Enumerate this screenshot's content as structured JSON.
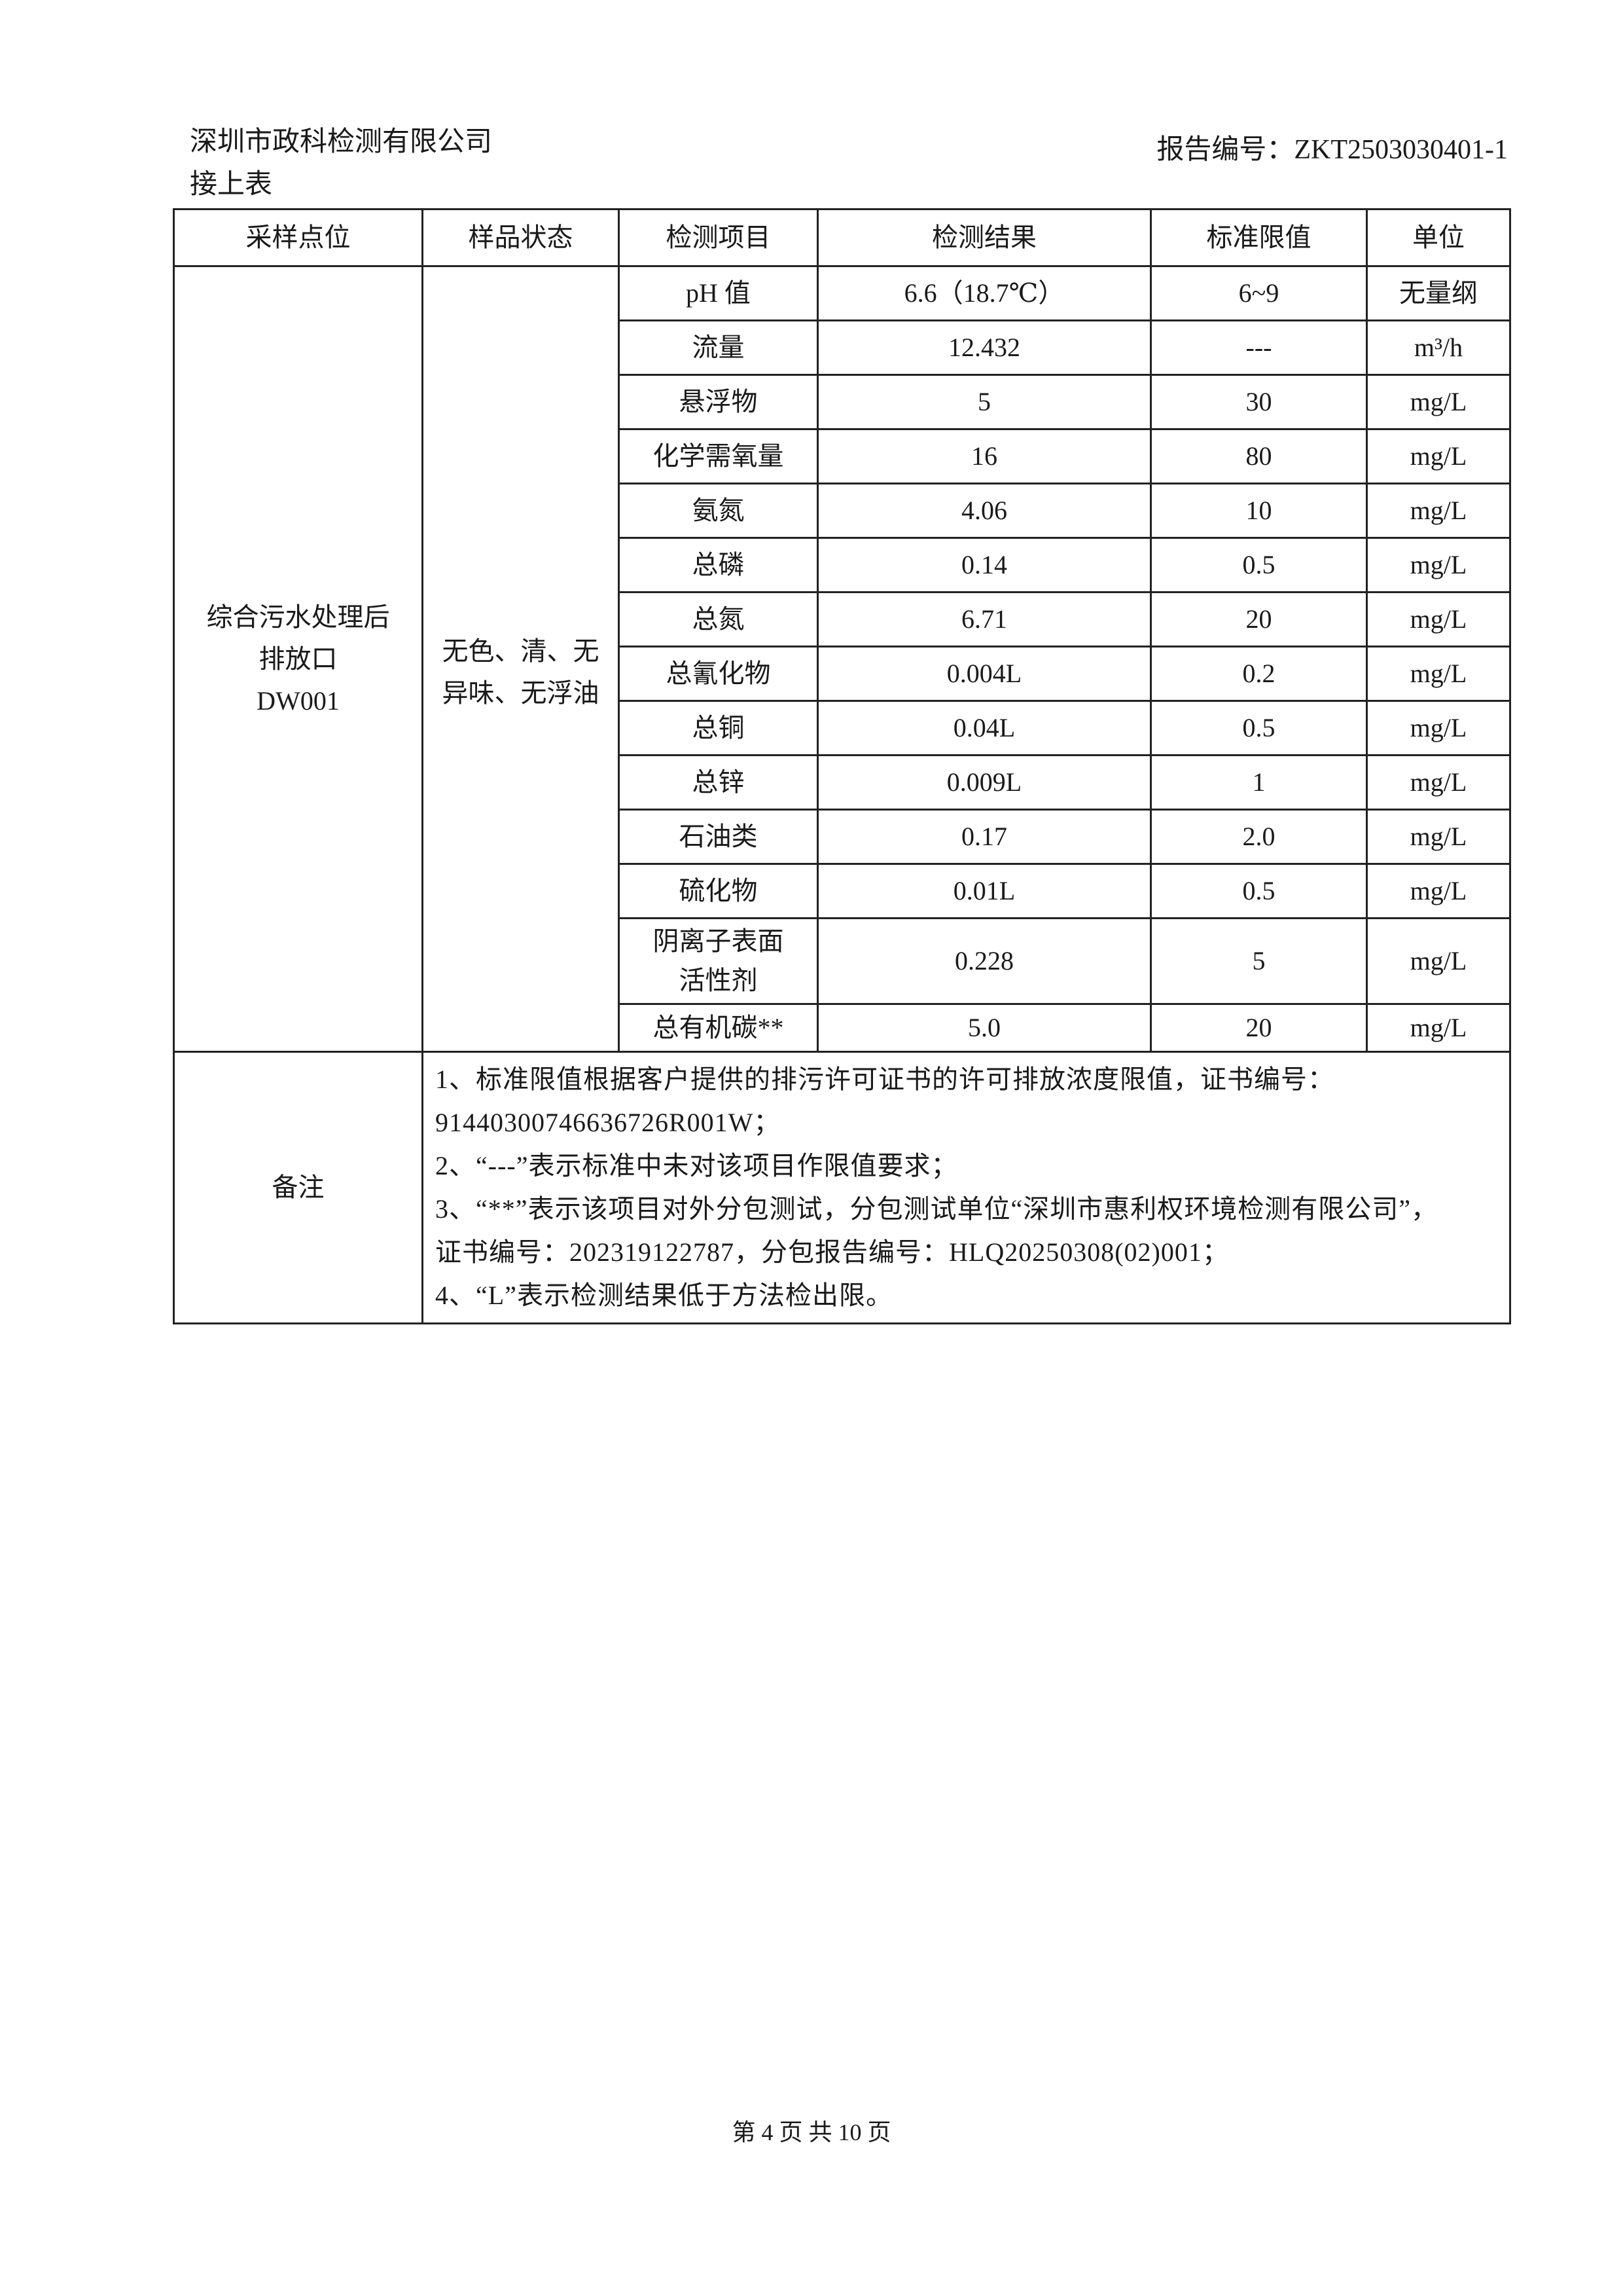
{
  "header": {
    "company": "深圳市政科检测有限公司",
    "report_no": "报告编号：ZKT2503030401-1",
    "continued": "接上表"
  },
  "table": {
    "columns": [
      "采样点位",
      "样品状态",
      "检测项目",
      "检测结果",
      "标准限值",
      "单位"
    ],
    "site": [
      "综合污水处理后",
      "排放口",
      "DW001"
    ],
    "sample_state": [
      "无色、清、无",
      "异味、无浮油"
    ],
    "rows": [
      {
        "item": "pH 值",
        "result": "6.6（18.7℃）",
        "limit": "6~9",
        "unit": "无量纲"
      },
      {
        "item": "流量",
        "result": "12.432",
        "limit": "---",
        "unit": "m³/h"
      },
      {
        "item": "悬浮物",
        "result": "5",
        "limit": "30",
        "unit": "mg/L"
      },
      {
        "item": "化学需氧量",
        "result": "16",
        "limit": "80",
        "unit": "mg/L"
      },
      {
        "item": "氨氮",
        "result": "4.06",
        "limit": "10",
        "unit": "mg/L"
      },
      {
        "item": "总磷",
        "result": "0.14",
        "limit": "0.5",
        "unit": "mg/L"
      },
      {
        "item": "总氮",
        "result": "6.71",
        "limit": "20",
        "unit": "mg/L"
      },
      {
        "item": "总氰化物",
        "result": "0.004L",
        "limit": "0.2",
        "unit": "mg/L"
      },
      {
        "item": "总铜",
        "result": "0.04L",
        "limit": "0.5",
        "unit": "mg/L"
      },
      {
        "item": "总锌",
        "result": "0.009L",
        "limit": "1",
        "unit": "mg/L"
      },
      {
        "item": "石油类",
        "result": "0.17",
        "limit": "2.0",
        "unit": "mg/L"
      },
      {
        "item": "硫化物",
        "result": "0.01L",
        "limit": "0.5",
        "unit": "mg/L"
      },
      {
        "item": "阴离子表面活性剂",
        "item_lines": [
          "阴离子表面",
          "活性剂"
        ],
        "result": "0.228",
        "limit": "5",
        "unit": "mg/L"
      },
      {
        "item": "总有机碳**",
        "result": "5.0",
        "limit": "20",
        "unit": "mg/L"
      }
    ],
    "notes_label": "备注",
    "notes": [
      "1、标准限值根据客户提供的排污许可证书的许可排放浓度限值，证书编号：",
      "91440300746636726R001W；",
      "2、“---”表示标准中未对该项目作限值要求；",
      "3、“**”表示该项目对外分包测试，分包测试单位“深圳市惠利权环境检测有限公司”，",
      "证书编号：202319122787，分包报告编号：HLQ20250308(02)001；",
      "4、“L”表示检测结果低于方法检出限。"
    ]
  },
  "footer": {
    "page": "第 4 页 共 10 页"
  }
}
